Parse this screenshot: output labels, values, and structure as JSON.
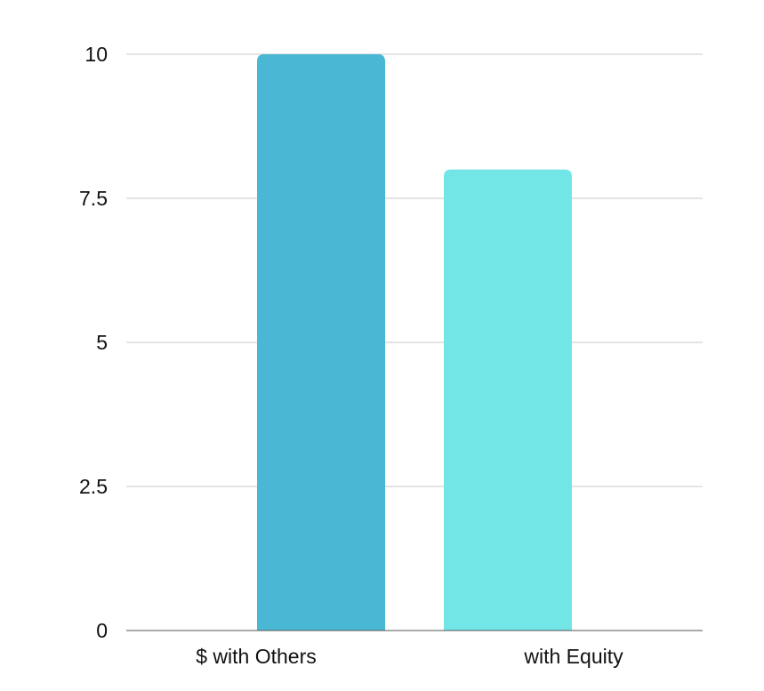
{
  "chart_data": {
    "type": "bar",
    "categories": [
      "$ with Others",
      "with Equity"
    ],
    "values": [
      10,
      8
    ],
    "colors": [
      "#4ab8d4",
      "#72e5e6"
    ],
    "ylim": [
      0,
      10
    ],
    "yticks": [
      0,
      2.5,
      5,
      7.5,
      10
    ],
    "ytick_labels": [
      "0",
      "2.5",
      "5",
      "7.5",
      "10"
    ],
    "grid": true,
    "legend": "none",
    "gridline_color": "#c8c8c8",
    "axis_color": "#555555"
  }
}
